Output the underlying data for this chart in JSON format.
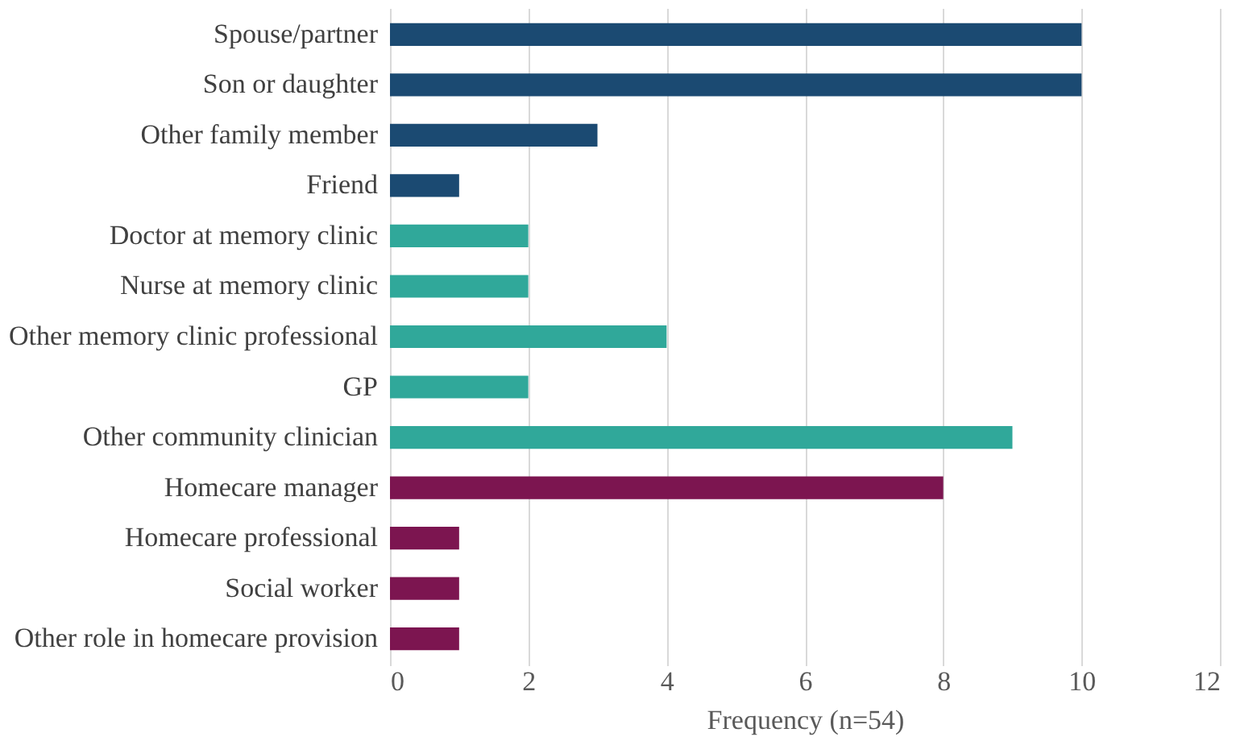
{
  "chart_data": {
    "type": "bar",
    "orientation": "horizontal",
    "xlabel": "Frequency (n=54)",
    "categories": [
      "Spouse/partner",
      "Son or daughter",
      "Other family member",
      "Friend",
      "Doctor at memory clinic",
      "Nurse at memory clinic",
      "Other memory clinic professional",
      "GP",
      "Other community clinician",
      "Homecare manager",
      "Homecare professional",
      "Social worker",
      "Other role in homecare provision"
    ],
    "values": [
      10,
      10,
      3,
      1,
      2,
      2,
      4,
      2,
      9,
      8,
      1,
      1,
      1
    ],
    "colors": [
      "#1b4a72",
      "#1b4a72",
      "#1b4a72",
      "#1b4a72",
      "#30a89a",
      "#30a89a",
      "#30a89a",
      "#30a89a",
      "#30a89a",
      "#7c1550",
      "#7c1550",
      "#7c1550",
      "#7c1550"
    ],
    "xlim": [
      0,
      12
    ],
    "xticks": [
      0,
      2,
      4,
      6,
      8,
      10,
      12
    ],
    "grid": "x",
    "legend": false
  }
}
